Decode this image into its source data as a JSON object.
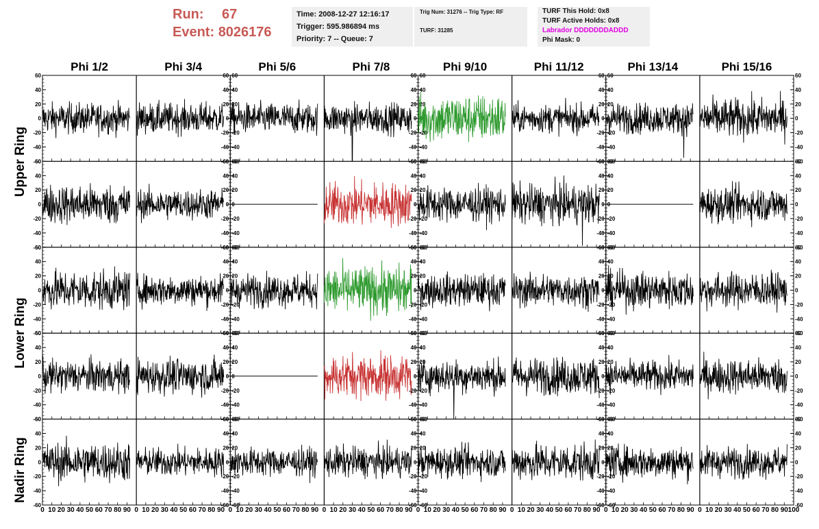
{
  "header": {
    "run_label": "Run:",
    "run_value": "67",
    "event_label": "Event:",
    "event_value": "8026176",
    "time_line": "Time: 2008-12-27 12:16:17",
    "trigger_line": "Trigger: 595.986894 ms",
    "priority_line": "Priority: 7 -- Queue: 7",
    "trig_num_line": "Trig Num: 31276 -- Trig Type: RF",
    "turf_line": "TURF: 31285",
    "turf_hold_line": "TURF This Hold: 0x8",
    "turf_active_line": "TURF Active Holds: 0x8",
    "labrador_line": "Labrador DDDDDDDADDD",
    "phi_mask_line": "Phi Mask: 0"
  },
  "colors": {
    "header_red": "#c75a55",
    "labrador_magenta": "#e000e0",
    "trace_default": "#000000",
    "trace_green": "#2e9a2e",
    "trace_red": "#c83232",
    "box_background": "#efefef"
  },
  "ring_labels": [
    "Upper Ring",
    "Lower Ring",
    "Nadir Ring"
  ],
  "chart_data": {
    "type": "line",
    "columns": [
      "Phi 1/2",
      "Phi 3/4",
      "Phi 5/6",
      "Phi 7/8",
      "Phi 9/10",
      "Phi 11/12",
      "Phi 13/14",
      "Phi 15/16"
    ],
    "rows": 5,
    "ylim": [
      -60,
      60
    ],
    "yticks": [
      -60,
      -40,
      -20,
      0,
      20,
      40,
      60
    ],
    "xlim": [
      0,
      100
    ],
    "xticks": [
      0,
      10,
      20,
      30,
      40,
      50,
      60,
      70,
      80,
      90,
      100
    ],
    "samples_per_trace": 260,
    "trace_x_range": [
      0,
      93
    ],
    "panels": [
      {
        "row": 0,
        "col": 0,
        "amp": 14,
        "color": "black"
      },
      {
        "row": 0,
        "col": 1,
        "amp": 14,
        "color": "black"
      },
      {
        "row": 0,
        "col": 2,
        "amp": 14,
        "color": "black"
      },
      {
        "row": 0,
        "col": 3,
        "amp": 14,
        "color": "black",
        "spike": [
          30,
          -60
        ]
      },
      {
        "row": 0,
        "col": 4,
        "amp": 22,
        "color": "green"
      },
      {
        "row": 0,
        "col": 5,
        "amp": 13,
        "color": "black"
      },
      {
        "row": 0,
        "col": 6,
        "amp": 14,
        "color": "black",
        "spike": [
          83,
          -55
        ]
      },
      {
        "row": 0,
        "col": 7,
        "amp": 18,
        "color": "black"
      },
      {
        "row": 1,
        "col": 0,
        "amp": 18,
        "color": "black"
      },
      {
        "row": 1,
        "col": 1,
        "amp": 14,
        "color": "black"
      },
      {
        "row": 1,
        "col": 2,
        "amp": 0,
        "color": "black",
        "flat": true
      },
      {
        "row": 1,
        "col": 3,
        "amp": 20,
        "color": "red"
      },
      {
        "row": 1,
        "col": 4,
        "amp": 16,
        "color": "black"
      },
      {
        "row": 1,
        "col": 5,
        "amp": 18,
        "color": "black",
        "spike": [
          75,
          -58
        ]
      },
      {
        "row": 1,
        "col": 6,
        "amp": 0,
        "color": "black",
        "flat": true
      },
      {
        "row": 1,
        "col": 7,
        "amp": 16,
        "color": "black"
      },
      {
        "row": 2,
        "col": 0,
        "amp": 18,
        "color": "black"
      },
      {
        "row": 2,
        "col": 1,
        "amp": 14,
        "color": "black"
      },
      {
        "row": 2,
        "col": 2,
        "amp": 15,
        "color": "black"
      },
      {
        "row": 2,
        "col": 3,
        "amp": 22,
        "color": "green"
      },
      {
        "row": 2,
        "col": 4,
        "amp": 15,
        "color": "black"
      },
      {
        "row": 2,
        "col": 5,
        "amp": 15,
        "color": "black"
      },
      {
        "row": 2,
        "col": 6,
        "amp": 17,
        "color": "black"
      },
      {
        "row": 2,
        "col": 7,
        "amp": 16,
        "color": "black"
      },
      {
        "row": 3,
        "col": 0,
        "amp": 15,
        "color": "black"
      },
      {
        "row": 3,
        "col": 1,
        "amp": 16,
        "color": "black"
      },
      {
        "row": 3,
        "col": 2,
        "amp": 0,
        "color": "black",
        "flat": true
      },
      {
        "row": 3,
        "col": 3,
        "amp": 20,
        "color": "red"
      },
      {
        "row": 3,
        "col": 4,
        "amp": 15,
        "color": "black",
        "spike": [
          38,
          -60
        ]
      },
      {
        "row": 3,
        "col": 5,
        "amp": 17,
        "color": "black"
      },
      {
        "row": 3,
        "col": 6,
        "amp": 14,
        "color": "black"
      },
      {
        "row": 3,
        "col": 7,
        "amp": 16,
        "color": "black"
      },
      {
        "row": 4,
        "col": 0,
        "amp": 18,
        "color": "black"
      },
      {
        "row": 4,
        "col": 1,
        "amp": 13,
        "color": "black"
      },
      {
        "row": 4,
        "col": 2,
        "amp": 13,
        "color": "black"
      },
      {
        "row": 4,
        "col": 3,
        "amp": 14,
        "color": "black"
      },
      {
        "row": 4,
        "col": 4,
        "amp": 14,
        "color": "black"
      },
      {
        "row": 4,
        "col": 5,
        "amp": 17,
        "color": "black"
      },
      {
        "row": 4,
        "col": 6,
        "amp": 15,
        "color": "black"
      },
      {
        "row": 4,
        "col": 7,
        "amp": 14,
        "color": "black"
      }
    ]
  }
}
